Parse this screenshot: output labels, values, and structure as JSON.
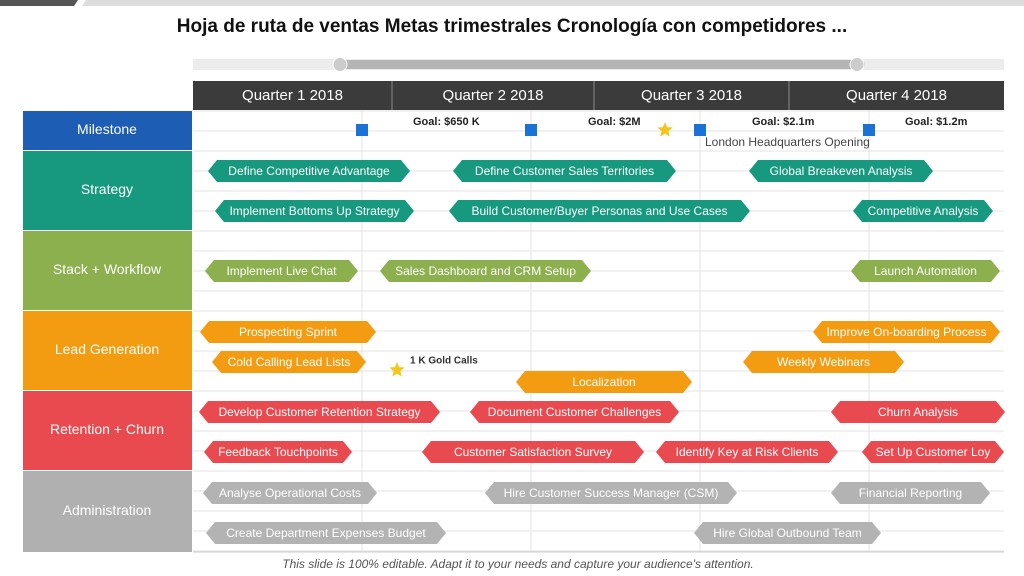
{
  "title": "Hoja de ruta de ventas Metas trimestrales Cronología con competidores ...",
  "quarters": [
    "Quarter 1 2018",
    "Quarter 2 2018",
    "Quarter 3 2018",
    "Quarter 4 2018"
  ],
  "milestone": {
    "label": "Milestone",
    "goals": [
      "Goal: $650 K",
      "Goal: $2M",
      "Goal: $2.1m",
      "Goal: $1.2m"
    ],
    "event": "London Headquarters Opening"
  },
  "rows": [
    {
      "label": "Strategy",
      "tasks": [
        "Define Competitive Advantage",
        "Define Customer Sales Territories",
        "Global Breakeven Analysis",
        "Implement  Bottoms Up Strategy",
        "Build Customer/Buyer  Personas and Use Cases",
        "Competitive Analysis"
      ]
    },
    {
      "label": "Stack + Workflow",
      "tasks": [
        "Implement  Live Chat",
        "Sales Dashboard and CRM Setup",
        "Launch Automation"
      ]
    },
    {
      "label": "Lead Generation",
      "tasks": [
        "Prospecting Sprint",
        "Improve On-boarding Process",
        "Cold Calling Lead Lists",
        "Weekly Webinars",
        "Localization"
      ],
      "note": "1 K Gold Calls"
    },
    {
      "label": "Retention + Churn",
      "tasks": [
        "Develop Customer Retention Strategy",
        "Document Customer Challenges",
        "Churn Analysis",
        "Feedback Touchpoints",
        "Customer Satisfaction Survey",
        "Identify  Key at Risk Clients",
        "Set Up Customer Loy"
      ]
    },
    {
      "label": "Administration",
      "tasks": [
        "Analyse Operational Costs",
        "Hire Customer Success Manager (CSM)",
        "Financial Reporting",
        "Create Department Expenses Budget",
        "Hire Global Outbound Team"
      ]
    }
  ],
  "footer": "This slide is 100% editable. Adapt it to your needs and capture your audience's attention."
}
